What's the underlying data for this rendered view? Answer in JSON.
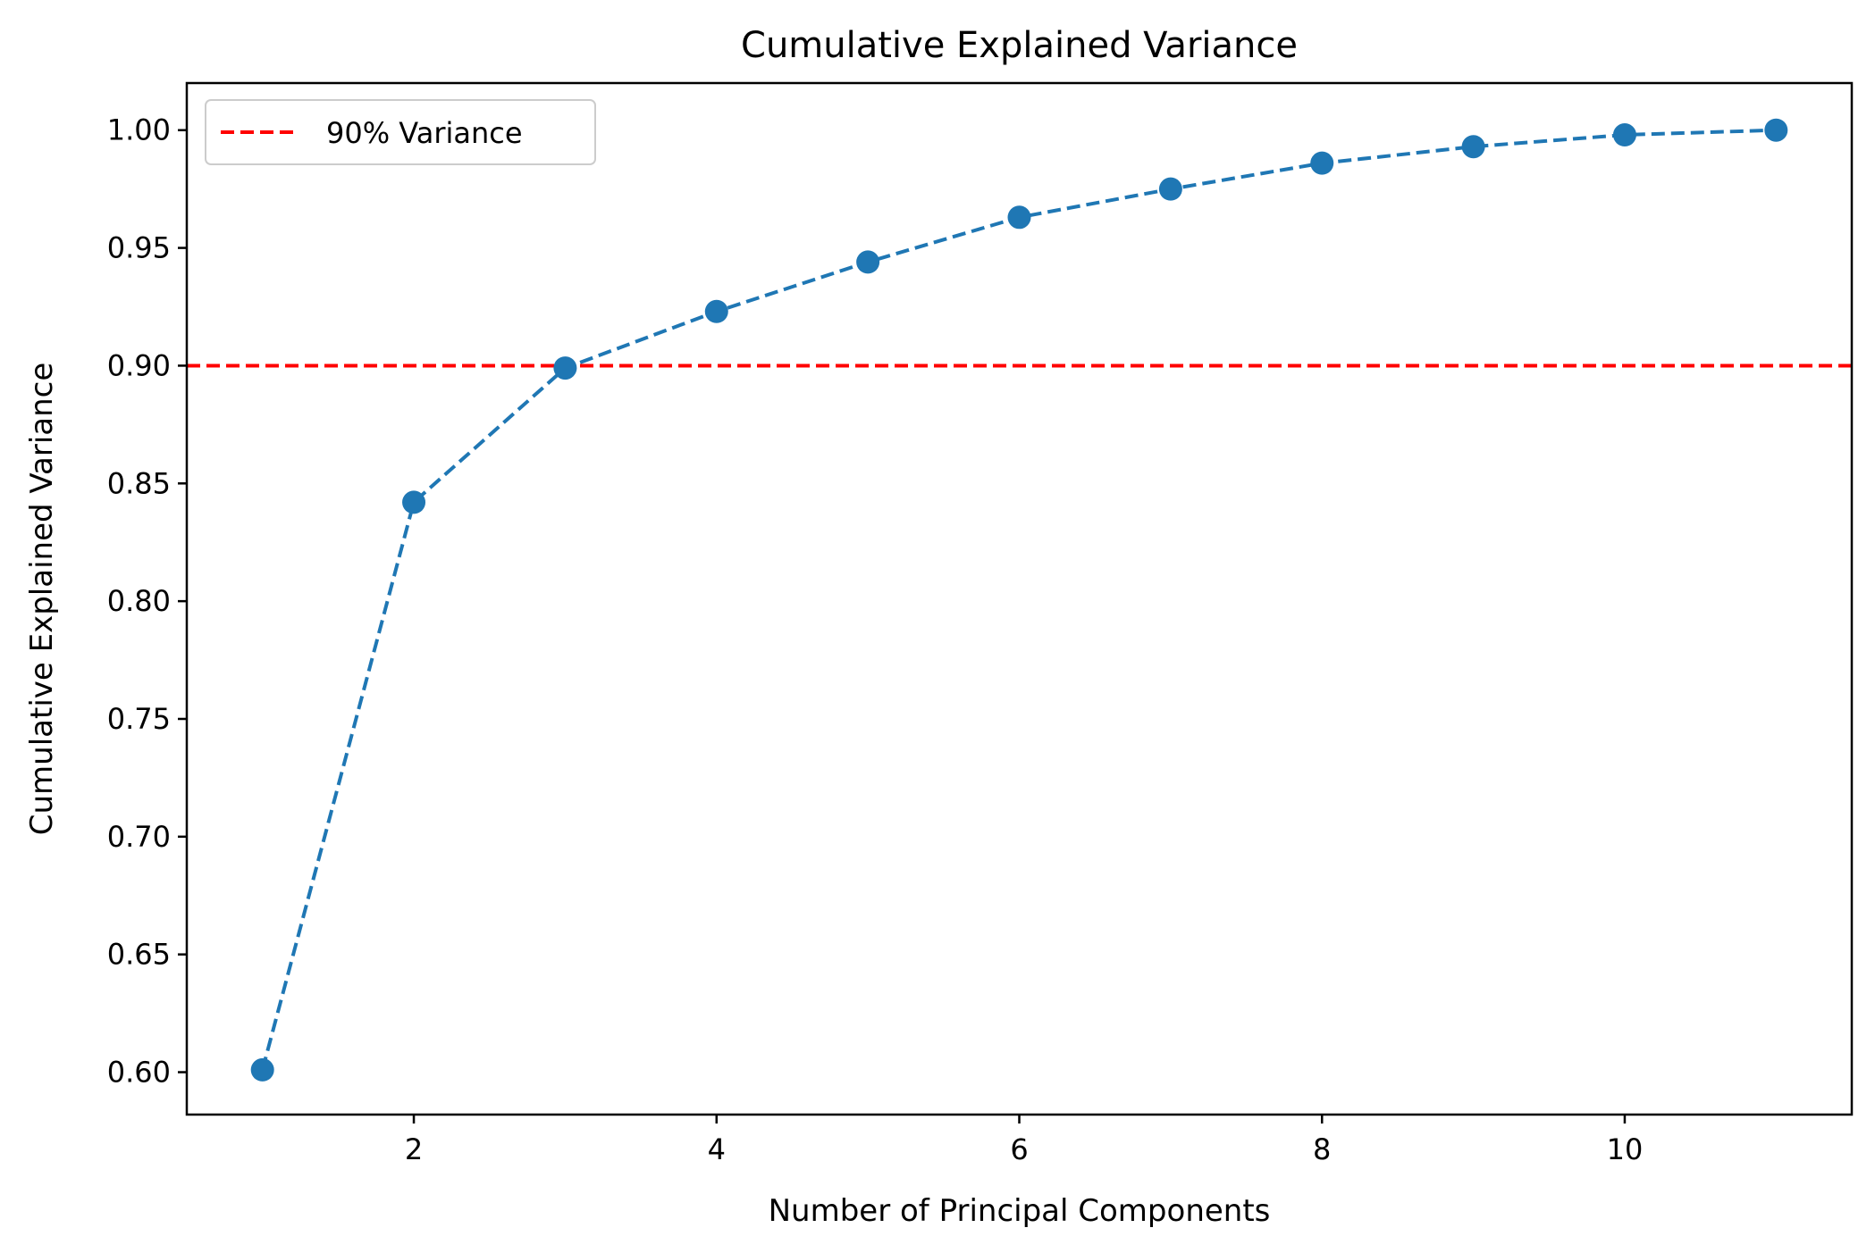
{
  "chart_data": {
    "type": "line",
    "title": "Cumulative Explained Variance",
    "xlabel": "Number of Principal Components",
    "ylabel": "Cumulative Explained Variance",
    "xlim": [
      0.5,
      11.5
    ],
    "ylim": [
      0.582,
      1.02
    ],
    "x_ticks": [
      2,
      4,
      6,
      8,
      10
    ],
    "x_tick_labels": [
      "2",
      "4",
      "6",
      "8",
      "10"
    ],
    "y_ticks": [
      0.6,
      0.65,
      0.7,
      0.75,
      0.8,
      0.85,
      0.9,
      0.95,
      1.0
    ],
    "y_tick_labels": [
      "0.60",
      "0.65",
      "0.70",
      "0.75",
      "0.80",
      "0.85",
      "0.90",
      "0.95",
      "1.00"
    ],
    "grid": false,
    "series": [
      {
        "x": [
          1,
          2,
          3,
          4,
          5,
          6,
          7,
          8,
          9,
          10,
          11
        ],
        "values": [
          0.601,
          0.842,
          0.899,
          0.923,
          0.944,
          0.963,
          0.975,
          0.986,
          0.993,
          0.998,
          1.0
        ],
        "color": "#1f77b4",
        "line_style": "dashed",
        "marker": "circle"
      }
    ],
    "reference_lines": [
      {
        "orientation": "horizontal",
        "value": 0.9,
        "name": "90% Variance",
        "color": "#ff0000",
        "line_style": "dashed"
      }
    ],
    "legend": {
      "position": "top-left",
      "entries": [
        "90% Variance"
      ]
    }
  }
}
